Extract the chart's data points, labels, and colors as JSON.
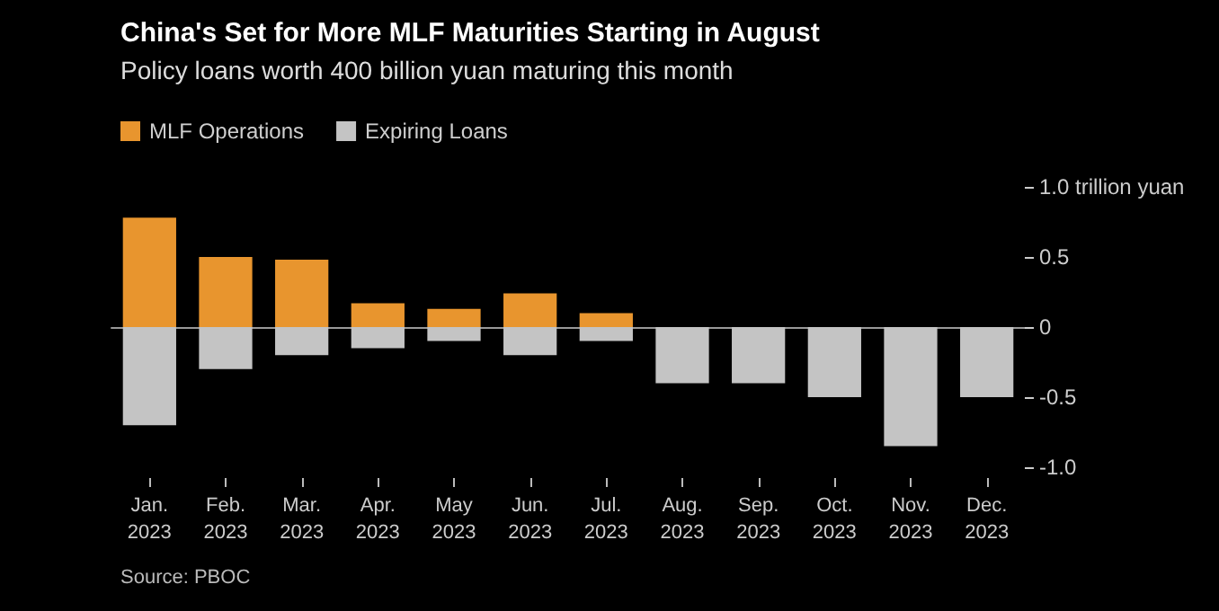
{
  "chart_data": {
    "type": "bar",
    "title": "China's Set for More MLF Maturities Starting in August",
    "subtitle": "Policy loans worth 400 billion yuan maturing this month",
    "categories": [
      "Jan.\n2023",
      "Feb.\n2023",
      "Mar.\n2023",
      "Apr.\n2023",
      "May\n2023",
      "Jun.\n2023",
      "Jul.\n2023",
      "Aug.\n2023",
      "Sep.\n2023",
      "Oct.\n2023",
      "Nov.\n2023",
      "Dec.\n2023"
    ],
    "series": [
      {
        "name": "MLF Operations",
        "color": "#e8952e",
        "values": [
          0.78,
          0.5,
          0.48,
          0.17,
          0.13,
          0.24,
          0.1,
          null,
          null,
          null,
          null,
          null
        ]
      },
      {
        "name": "Expiring Loans",
        "color": "#c4c4c4",
        "values": [
          -0.7,
          -0.3,
          -0.2,
          -0.15,
          -0.1,
          -0.2,
          -0.1,
          -0.4,
          -0.4,
          -0.5,
          -0.85,
          -0.5
        ]
      }
    ],
    "ylim": [
      -1.0,
      1.0
    ],
    "yticks": [
      {
        "value": 1.0,
        "label": "1.0 trillion yuan"
      },
      0.5,
      0,
      -0.5,
      {
        "value": -1.0,
        "label": "-1.0"
      }
    ],
    "stacked": true,
    "legend": "top left",
    "annotations": [
      "Source: PBOC"
    ]
  }
}
